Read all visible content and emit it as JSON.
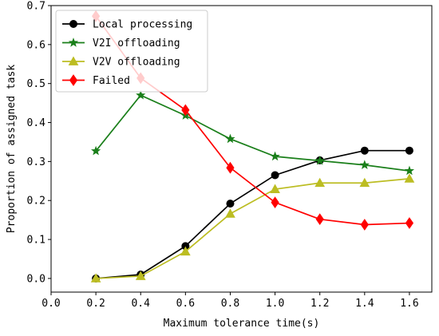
{
  "chart_data": {
    "type": "line",
    "title": "",
    "xlabel": "Maximum tolerance time(s)",
    "ylabel": "Proportion of assigned task",
    "xlim": [
      0.0,
      1.7
    ],
    "ylim": [
      -0.035,
      0.7
    ],
    "x_ticks": [
      "0.0",
      "0.2",
      "0.4",
      "0.6",
      "0.8",
      "1.0",
      "1.2",
      "1.4",
      "1.6"
    ],
    "y_ticks": [
      "0.0",
      "0.1",
      "0.2",
      "0.3",
      "0.4",
      "0.5",
      "0.6",
      "0.7"
    ],
    "x": [
      0.2,
      0.4,
      0.6,
      0.8,
      1.0,
      1.2,
      1.4,
      1.6
    ],
    "grid": false,
    "legend_position": "top-left",
    "series": [
      {
        "name": "Local processing",
        "color": "#000000",
        "marker": "circle",
        "values": [
          0.0,
          0.01,
          0.083,
          0.192,
          0.265,
          0.303,
          0.328,
          0.328
        ]
      },
      {
        "name": "V2I offloading",
        "color": "#1a7f1a",
        "marker": "star",
        "values": [
          0.327,
          0.47,
          0.418,
          0.358,
          0.313,
          0.302,
          0.291,
          0.276
        ]
      },
      {
        "name": "V2V offloading",
        "color": "#bcbd22",
        "marker": "triangle",
        "values": [
          0.0,
          0.006,
          0.069,
          0.166,
          0.229,
          0.245,
          0.245,
          0.256
        ]
      },
      {
        "name": "Failed",
        "color": "#ff0000",
        "marker": "diamond",
        "values": [
          0.673,
          0.514,
          0.432,
          0.284,
          0.195,
          0.152,
          0.138,
          0.142
        ]
      }
    ]
  }
}
